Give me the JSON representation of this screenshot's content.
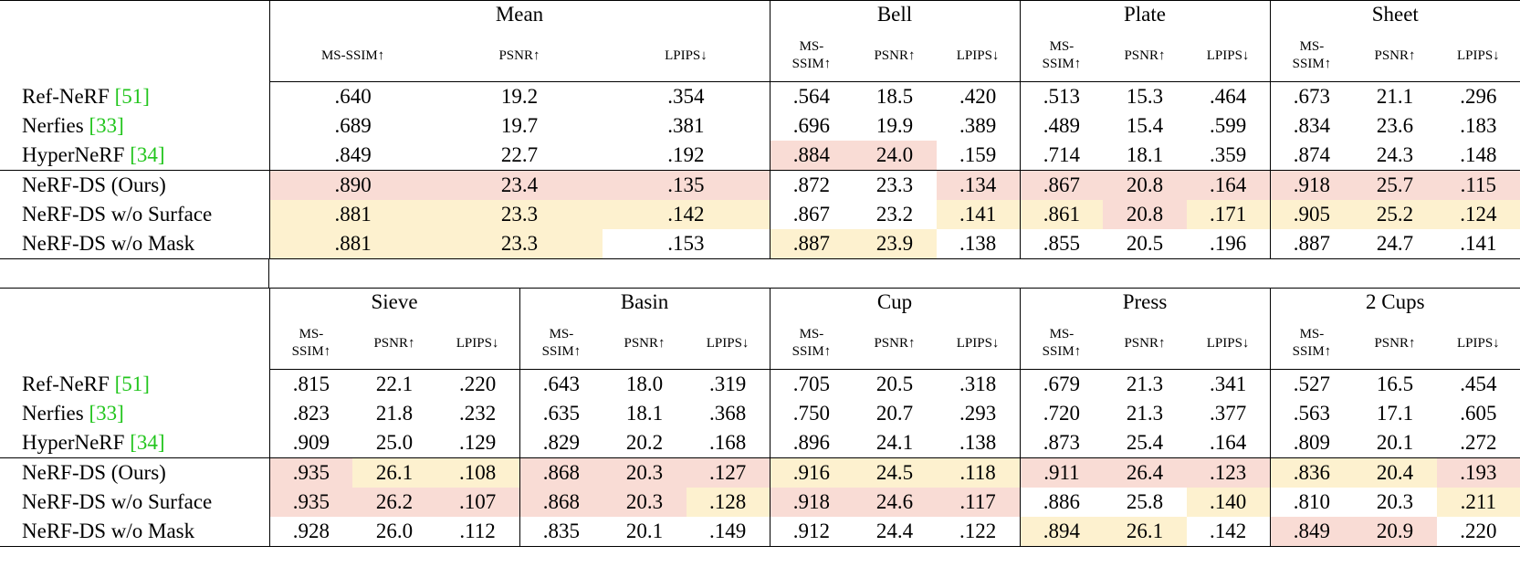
{
  "colors": {
    "best": "#f9dcd5",
    "second": "#fdf1cf"
  },
  "tables": [
    {
      "groups": [
        "Mean",
        "Bell",
        "Plate",
        "Sheet"
      ],
      "metrics": [
        "MS-SSIM↑",
        "PSNR↑",
        "LPIPS↓"
      ],
      "rows": [
        {
          "method": "Ref-NeRF",
          "cite": "[51]",
          "values": [
            ".640",
            "19.2",
            ".354",
            ".564",
            "18.5",
            ".420",
            ".513",
            "15.3",
            ".464",
            ".673",
            "21.1",
            ".296"
          ],
          "highlight": [
            null,
            null,
            null,
            null,
            null,
            null,
            null,
            null,
            null,
            null,
            null,
            null
          ]
        },
        {
          "method": "Nerfies",
          "cite": "[33]",
          "values": [
            ".689",
            "19.7",
            ".381",
            ".696",
            "19.9",
            ".389",
            ".489",
            "15.4",
            ".599",
            ".834",
            "23.6",
            ".183"
          ],
          "highlight": [
            null,
            null,
            null,
            null,
            null,
            null,
            null,
            null,
            null,
            null,
            null,
            null
          ]
        },
        {
          "method": "HyperNeRF",
          "cite": "[34]",
          "values": [
            ".849",
            "22.7",
            ".192",
            ".884",
            "24.0",
            ".159",
            ".714",
            "18.1",
            ".359",
            ".874",
            "24.3",
            ".148"
          ],
          "highlight": [
            null,
            null,
            null,
            "best",
            "best",
            null,
            null,
            null,
            null,
            null,
            null,
            null
          ]
        },
        {
          "method": "NeRF-DS (Ours)",
          "values": [
            ".890",
            "23.4",
            ".135",
            ".872",
            "23.3",
            ".134",
            ".867",
            "20.8",
            ".164",
            ".918",
            "25.7",
            ".115"
          ],
          "highlight": [
            "best",
            "best",
            "best",
            null,
            null,
            "best",
            "best",
            "best",
            "best",
            "best",
            "best",
            "best"
          ]
        },
        {
          "method": "NeRF-DS w/o Surface",
          "values": [
            ".881",
            "23.3",
            ".142",
            ".867",
            "23.2",
            ".141",
            ".861",
            "20.8",
            ".171",
            ".905",
            "25.2",
            ".124"
          ],
          "highlight": [
            "second",
            "second",
            "second",
            null,
            null,
            "second",
            "second",
            "best",
            "second",
            "second",
            "second",
            "second"
          ]
        },
        {
          "method": "NeRF-DS w/o Mask",
          "values": [
            ".881",
            "23.3",
            ".153",
            ".887",
            "23.9",
            ".138",
            ".855",
            "20.5",
            ".196",
            ".887",
            "24.7",
            ".141"
          ],
          "highlight": [
            "second",
            "second",
            null,
            "second",
            "second",
            null,
            null,
            null,
            null,
            null,
            null,
            null
          ]
        }
      ]
    },
    {
      "groups": [
        "Sieve",
        "Basin",
        "Cup",
        "Press",
        "2 Cups"
      ],
      "metrics": [
        "MS-SSIM↑",
        "PSNR↑",
        "LPIPS↓"
      ],
      "rows": [
        {
          "method": "Ref-NeRF",
          "cite": "[51]",
          "values": [
            ".815",
            "22.1",
            ".220",
            ".643",
            "18.0",
            ".319",
            ".705",
            "20.5",
            ".318",
            ".679",
            "21.3",
            ".341",
            ".527",
            "16.5",
            ".454"
          ],
          "highlight": [
            null,
            null,
            null,
            null,
            null,
            null,
            null,
            null,
            null,
            null,
            null,
            null,
            null,
            null,
            null
          ]
        },
        {
          "method": "Nerfies",
          "cite": "[33]",
          "values": [
            ".823",
            "21.8",
            ".232",
            ".635",
            "18.1",
            ".368",
            ".750",
            "20.7",
            ".293",
            ".720",
            "21.3",
            ".377",
            ".563",
            "17.1",
            ".605"
          ],
          "highlight": [
            null,
            null,
            null,
            null,
            null,
            null,
            null,
            null,
            null,
            null,
            null,
            null,
            null,
            null,
            null
          ]
        },
        {
          "method": "HyperNeRF",
          "cite": "[34]",
          "values": [
            ".909",
            "25.0",
            ".129",
            ".829",
            "20.2",
            ".168",
            ".896",
            "24.1",
            ".138",
            ".873",
            "25.4",
            ".164",
            ".809",
            "20.1",
            ".272"
          ],
          "highlight": [
            null,
            null,
            null,
            null,
            null,
            null,
            null,
            null,
            null,
            null,
            null,
            null,
            null,
            null,
            null
          ]
        },
        {
          "method": "NeRF-DS (Ours)",
          "values": [
            ".935",
            "26.1",
            ".108",
            ".868",
            "20.3",
            ".127",
            ".916",
            "24.5",
            ".118",
            ".911",
            "26.4",
            ".123",
            ".836",
            "20.4",
            ".193"
          ],
          "highlight": [
            "best",
            "second",
            "second",
            "best",
            "best",
            "best",
            "second",
            "second",
            "second",
            "best",
            "best",
            "best",
            "second",
            "second",
            "best"
          ]
        },
        {
          "method": "NeRF-DS w/o Surface",
          "values": [
            ".935",
            "26.2",
            ".107",
            ".868",
            "20.3",
            ".128",
            ".918",
            "24.6",
            ".117",
            ".886",
            "25.8",
            ".140",
            ".810",
            "20.3",
            ".211"
          ],
          "highlight": [
            "best",
            "best",
            "best",
            "best",
            "best",
            "second",
            "best",
            "best",
            "best",
            null,
            null,
            "second",
            null,
            null,
            "second"
          ]
        },
        {
          "method": "NeRF-DS w/o Mask",
          "values": [
            ".928",
            "26.0",
            ".112",
            ".835",
            "20.1",
            ".149",
            ".912",
            "24.4",
            ".122",
            ".894",
            "26.1",
            ".142",
            ".849",
            "20.9",
            ".220"
          ],
          "highlight": [
            null,
            null,
            null,
            null,
            null,
            null,
            null,
            null,
            null,
            "second",
            "second",
            null,
            "best",
            "best",
            null
          ]
        }
      ]
    }
  ]
}
